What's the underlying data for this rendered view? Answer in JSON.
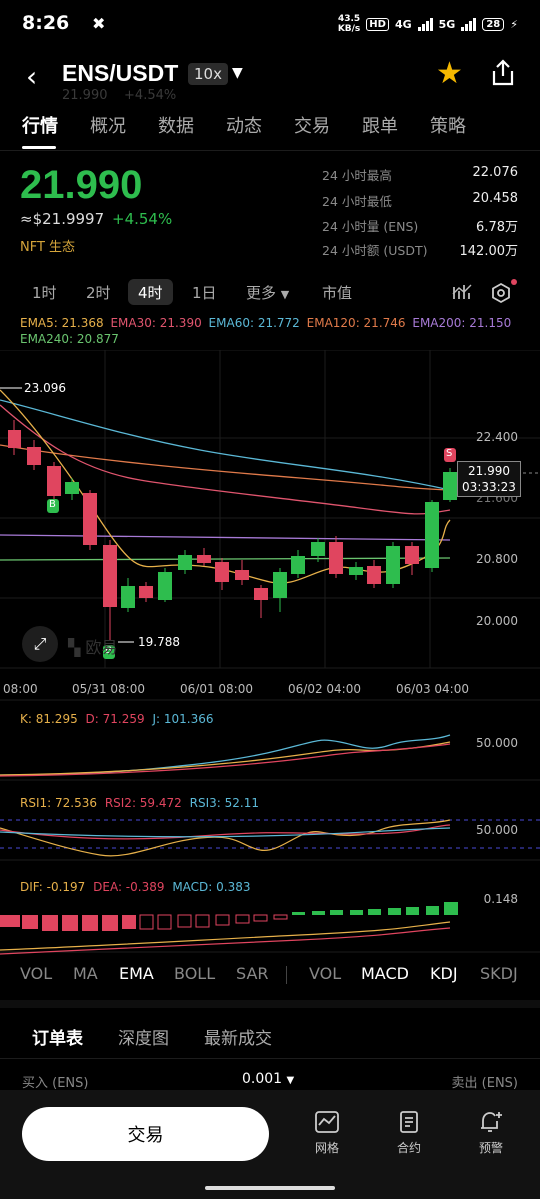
{
  "status_bar": {
    "time": "8:26",
    "speed_top": "43.5",
    "speed_bottom": "KB/s",
    "hd": "HD",
    "net1": "4G",
    "net2": "5G",
    "battery": "28"
  },
  "header": {
    "pair": "ENS/USDT",
    "leverage": "10x",
    "ghost_price": "21.990",
    "ghost_change": "+4.54%"
  },
  "tabs": [
    "行情",
    "概况",
    "数据",
    "动态",
    "交易",
    "跟单",
    "策略"
  ],
  "ticker": {
    "price": "21.990",
    "usd_price": "≈$21.9997",
    "change": "+4.54%",
    "tag": "NFT 生态",
    "stats": [
      {
        "label": "24 小时最高",
        "value": "22.076"
      },
      {
        "label": "24 小时最低",
        "value": "20.458"
      },
      {
        "label": "24 小时量 (ENS)",
        "value": "6.78万"
      },
      {
        "label": "24 小时额 (USDT)",
        "value": "142.00万"
      }
    ]
  },
  "timeframes": [
    "1时",
    "2时",
    "4时",
    "1日",
    "更多",
    "市值"
  ],
  "ema_legend": [
    {
      "text": "EMA5: 21.368",
      "color": "#e6b04a"
    },
    {
      "text": "EMA30: 21.390",
      "color": "#e0556e"
    },
    {
      "text": "EMA60: 21.772",
      "color": "#5bb8d6"
    },
    {
      "text": "EMA120: 21.746",
      "color": "#e07a4a"
    },
    {
      "text": "EMA200: 21.150",
      "color": "#a77ad6"
    },
    {
      "text": "EMA240: 20.877",
      "color": "#6ac46f"
    }
  ],
  "chart": {
    "price_axis": [
      "22.400",
      "21.600",
      "20.800",
      "20.000"
    ],
    "current_price": "21.990",
    "countdown": "03:33:23",
    "high_marker": "23.096",
    "low_marker": "19.788",
    "time_axis": [
      "08:00",
      "05/31 08:00",
      "06/01 08:00",
      "06/02 04:00",
      "06/03 04:00"
    ],
    "watermark": "欧易",
    "marker_b": "B",
    "marker_s": "S"
  },
  "kdj": {
    "k": "K: 81.295",
    "d": "D: 71.259",
    "j": "J: 101.366",
    "axis": "50.000"
  },
  "rsi": {
    "r1": "RSI1: 72.536",
    "r2": "RSI2: 59.472",
    "r3": "RSI3: 52.11",
    "axis": "50.000"
  },
  "macd": {
    "dif": "DIF: -0.197",
    "dea": "DEA: -0.389",
    "macd": "MACD: 0.383",
    "axis": "0.148"
  },
  "indicator_tabs": [
    "VOL",
    "MA",
    "EMA",
    "BOLL",
    "SAR",
    "VOL",
    "MACD",
    "KDJ",
    "SKDJ"
  ],
  "orderbook": {
    "tabs": [
      "订单表",
      "深度图",
      "最新成交"
    ],
    "buy": "买入 (ENS)",
    "step": "0.001",
    "sell": "卖出 (ENS)"
  },
  "bottom": {
    "trade": "交易",
    "items": [
      "网格",
      "合约",
      "预警"
    ]
  },
  "colors": {
    "up": "#2ebd4e",
    "down": "#e0455f",
    "accent": "#f5b800"
  }
}
